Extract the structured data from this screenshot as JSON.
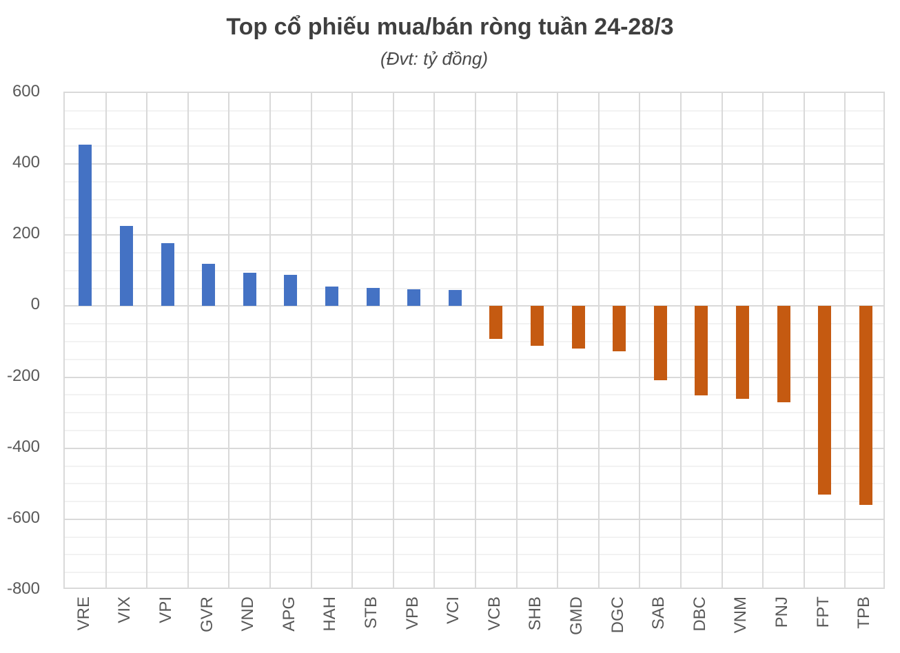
{
  "chart_data": {
    "type": "bar",
    "title": "Top cổ phiếu mua/bán ròng tuần 24-28/3",
    "subtitle": "(Đvt: tỷ đồng)",
    "unit": "tỷ đồng",
    "categories": [
      "VRE",
      "VIX",
      "VPI",
      "GVR",
      "VND",
      "APG",
      "HAH",
      "STB",
      "VPB",
      "VCI",
      "VCB",
      "SHB",
      "GMD",
      "DGC",
      "SAB",
      "DBC",
      "VNM",
      "PNJ",
      "FPT",
      "TPB"
    ],
    "values": [
      455,
      225,
      177,
      120,
      94,
      89,
      55,
      51,
      47,
      46,
      -92,
      -111,
      -120,
      -128,
      -208,
      -252,
      -261,
      -270,
      -530,
      -560
    ],
    "series_semantics": "positive = net buy (blue), negative = net sell (orange)",
    "xlabel": "",
    "ylabel": "",
    "ylim": [
      -800,
      600
    ],
    "y_major_step": 200,
    "y_minor_step": 50,
    "y_tick_labels": [
      "600",
      "400",
      "200",
      "0",
      "-200",
      "-400",
      "-600",
      "-800"
    ],
    "grid": true,
    "legend_position": "none",
    "colors": {
      "positive": "#4472C4",
      "negative": "#C55A11",
      "major_grid": "#d9d9d9",
      "minor_grid": "#f2f2f2",
      "title_text": "#3f3f3f",
      "axis_text": "#595959"
    }
  }
}
